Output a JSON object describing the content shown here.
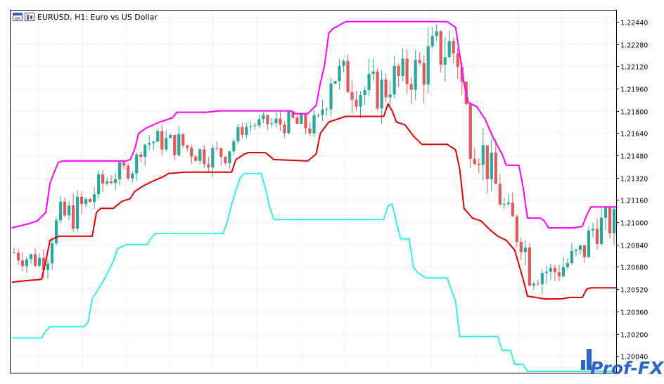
{
  "window": {
    "title": "EURUSD, H1:  Euro vs US Dollar",
    "icons": [
      "chart-window-icon",
      "candles-mode-icon"
    ]
  },
  "watermark": {
    "text": "Prof-FX"
  },
  "colors": {
    "upper": "#ff00ff",
    "middle": "#e00000",
    "lower": "#33eeee",
    "bull": "#2aa89a",
    "bear": "#e05a5a",
    "grid": "#e6e6e6",
    "axis": "#000000"
  },
  "chart_data": {
    "type": "line",
    "symbol": "EURUSD",
    "timeframe": "H1",
    "description": "Euro vs US Dollar",
    "ylim": [
      1.1992,
      1.2252
    ],
    "y_ticks": [
      1.2244,
      1.2228,
      1.2212,
      1.2196,
      1.218,
      1.2164,
      1.2148,
      1.2132,
      1.2116,
      1.21,
      1.2084,
      1.2068,
      1.2052,
      1.2036,
      1.202,
      1.2004
    ],
    "y_tick_labels": [
      "1.22440",
      "1.22280",
      "1.22120",
      "1.21960",
      "1.21800",
      "1.21640",
      "1.21480",
      "1.21320",
      "1.21160",
      "1.21000",
      "1.20840",
      "1.20680",
      "1.20520",
      "1.20360",
      "1.20200",
      "1.20040"
    ],
    "bars_count": 143,
    "series": [
      {
        "key": "upper",
        "points": [
          [
            0,
            1.2096
          ],
          [
            4,
            1.2099
          ],
          [
            6,
            1.2101
          ],
          [
            8,
            1.2107
          ],
          [
            9,
            1.2128
          ],
          [
            10,
            1.2136
          ],
          [
            11,
            1.2143
          ],
          [
            12,
            1.2144
          ],
          [
            27,
            1.2144
          ],
          [
            28,
            1.2145
          ],
          [
            29,
            1.2152
          ],
          [
            30,
            1.2164
          ],
          [
            31,
            1.2166
          ],
          [
            32,
            1.2168
          ],
          [
            35,
            1.2172
          ],
          [
            38,
            1.2175
          ],
          [
            39,
            1.2179
          ],
          [
            46,
            1.2179
          ],
          [
            49,
            1.218
          ],
          [
            56,
            1.218
          ],
          [
            65,
            1.218
          ],
          [
            66,
            1.218
          ],
          [
            67,
            1.2178
          ],
          [
            70,
            1.2178
          ],
          [
            72,
            1.2184
          ],
          [
            73,
            1.22
          ],
          [
            74,
            1.2213
          ],
          [
            75,
            1.2236
          ],
          [
            76,
            1.2239
          ],
          [
            79,
            1.2244
          ],
          [
            103,
            1.2244
          ],
          [
            105,
            1.224
          ],
          [
            107,
            1.22
          ],
          [
            108,
            1.2186
          ],
          [
            110,
            1.2183
          ],
          [
            112,
            1.2174
          ],
          [
            114,
            1.216
          ],
          [
            116,
            1.2149
          ],
          [
            117,
            1.2141
          ],
          [
            120,
            1.2141
          ],
          [
            121,
            1.2125
          ],
          [
            122,
            1.2103
          ],
          [
            125,
            1.2103
          ],
          [
            126,
            1.2101
          ],
          [
            127,
            1.2096
          ],
          [
            133,
            1.2096
          ],
          [
            135,
            1.2097
          ],
          [
            136,
            1.2105
          ],
          [
            137,
            1.2111
          ],
          [
            143,
            1.2111
          ]
        ]
      },
      {
        "key": "middle",
        "points": [
          [
            0,
            1.2057
          ],
          [
            3,
            1.2058
          ],
          [
            7,
            1.2059
          ],
          [
            8,
            1.2072
          ],
          [
            9,
            1.2087
          ],
          [
            11,
            1.209
          ],
          [
            19,
            1.209
          ],
          [
            20,
            1.2107
          ],
          [
            21,
            1.211
          ],
          [
            24,
            1.211
          ],
          [
            26,
            1.2115
          ],
          [
            28,
            1.2117
          ],
          [
            29,
            1.2122
          ],
          [
            31,
            1.2126
          ],
          [
            33,
            1.2129
          ],
          [
            36,
            1.2133
          ],
          [
            37,
            1.2135
          ],
          [
            41,
            1.2136
          ],
          [
            52,
            1.2136
          ],
          [
            53,
            1.2145
          ],
          [
            55,
            1.2149
          ],
          [
            56,
            1.215
          ],
          [
            60,
            1.215
          ],
          [
            62,
            1.2145
          ],
          [
            70,
            1.2144
          ],
          [
            72,
            1.2149
          ],
          [
            73,
            1.2164
          ],
          [
            75,
            1.2172
          ],
          [
            77,
            1.2174
          ],
          [
            79,
            1.2176
          ],
          [
            88,
            1.2176
          ],
          [
            89,
            1.2185
          ],
          [
            90,
            1.218
          ],
          [
            91,
            1.2172
          ],
          [
            93,
            1.217
          ],
          [
            95,
            1.2162
          ],
          [
            97,
            1.2156
          ],
          [
            103,
            1.2156
          ],
          [
            105,
            1.2152
          ],
          [
            106,
            1.2138
          ],
          [
            107,
            1.211
          ],
          [
            109,
            1.2103
          ],
          [
            111,
            1.2101
          ],
          [
            113,
            1.2095
          ],
          [
            115,
            1.209
          ],
          [
            117,
            1.2087
          ],
          [
            119,
            1.208
          ],
          [
            121,
            1.2059
          ],
          [
            122,
            1.2047
          ],
          [
            124,
            1.2046
          ],
          [
            126,
            1.2045
          ],
          [
            130,
            1.2045
          ],
          [
            132,
            1.2046
          ],
          [
            135,
            1.2046
          ],
          [
            136,
            1.2052
          ],
          [
            137,
            1.2053
          ],
          [
            143,
            1.2053
          ]
        ]
      },
      {
        "key": "lower",
        "points": [
          [
            0,
            1.2017
          ],
          [
            7,
            1.2017
          ],
          [
            8,
            1.2022
          ],
          [
            9,
            1.2025
          ],
          [
            17,
            1.2025
          ],
          [
            18,
            1.2028
          ],
          [
            19,
            1.2045
          ],
          [
            22,
            1.206
          ],
          [
            24,
            1.2072
          ],
          [
            25,
            1.2081
          ],
          [
            27,
            1.2084
          ],
          [
            32,
            1.2084
          ],
          [
            33,
            1.2089
          ],
          [
            34,
            1.2092
          ],
          [
            50,
            1.2092
          ],
          [
            51,
            1.2101
          ],
          [
            52,
            1.2113
          ],
          [
            53,
            1.2123
          ],
          [
            54,
            1.2132
          ],
          [
            55,
            1.2135
          ],
          [
            59,
            1.2135
          ],
          [
            60,
            1.2124
          ],
          [
            61,
            1.2111
          ],
          [
            62,
            1.2102
          ],
          [
            77,
            1.2102
          ],
          [
            88,
            1.2102
          ],
          [
            89,
            1.2112
          ],
          [
            90,
            1.2113
          ],
          [
            91,
            1.21
          ],
          [
            92,
            1.2088
          ],
          [
            94,
            1.2088
          ],
          [
            95,
            1.2068
          ],
          [
            96,
            1.2064
          ],
          [
            98,
            1.206
          ],
          [
            100,
            1.206
          ],
          [
            103,
            1.206
          ],
          [
            105,
            1.2043
          ],
          [
            106,
            1.2018
          ],
          [
            109,
            1.2018
          ],
          [
            115,
            1.2018
          ],
          [
            116,
            1.2008
          ],
          [
            118,
            1.2008
          ],
          [
            119,
            1.1998
          ],
          [
            121,
            1.1998
          ],
          [
            122,
            1.1993
          ],
          [
            143,
            1.1993
          ]
        ]
      }
    ]
  }
}
